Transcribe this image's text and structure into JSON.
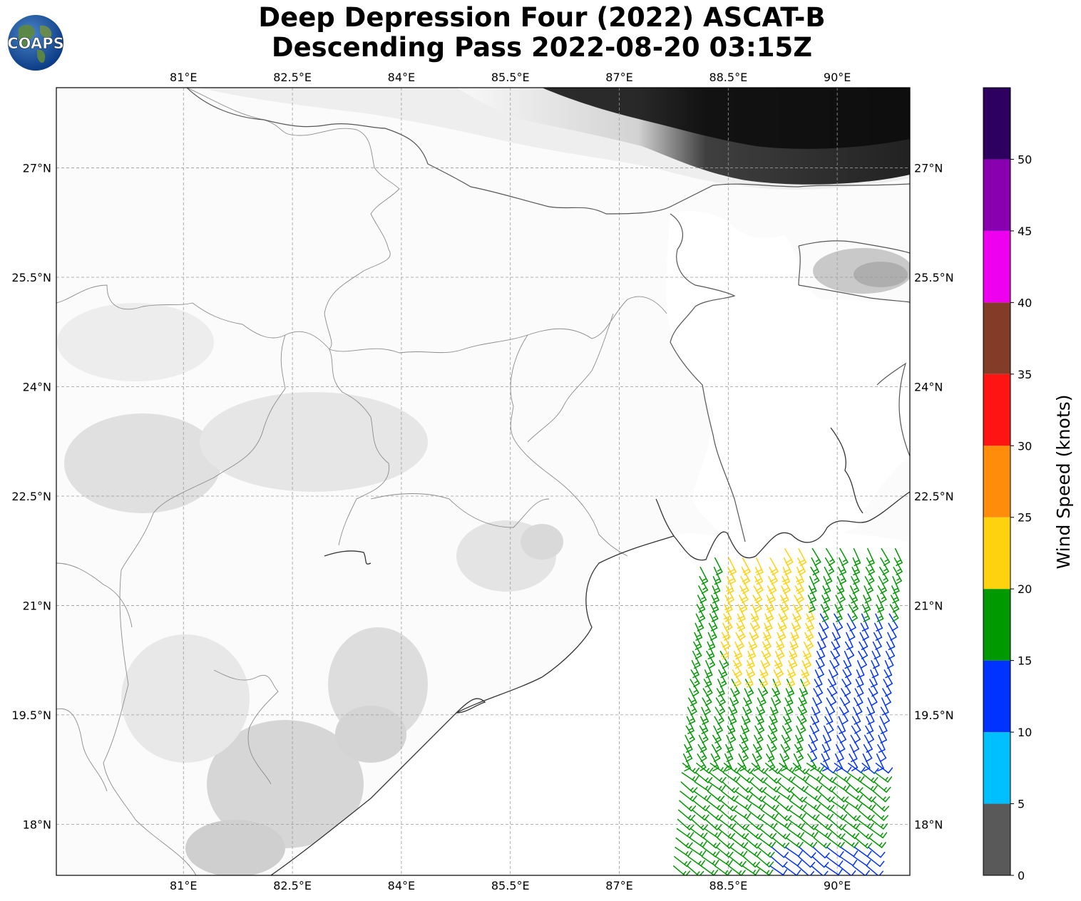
{
  "title": {
    "line1": "Deep Depression Four (2022) ASCAT-B",
    "line2": "Descending Pass 2022-08-20 03:15Z"
  },
  "logo": {
    "text": "COAPS"
  },
  "map": {
    "lon_range": [
      79.25,
      91.0
    ],
    "lat_range": [
      17.3,
      28.1
    ],
    "lon_ticks": [
      "81°E",
      "82.5°E",
      "84°E",
      "85.5°E",
      "87°E",
      "88.5°E",
      "90°E"
    ],
    "lat_ticks": [
      "27°N",
      "25.5°N",
      "24°N",
      "22.5°N",
      "21°N",
      "19.5°N",
      "18°N"
    ],
    "gridlines": true,
    "basemap": "grayscale terrain elevation",
    "barb_region": {
      "lon": [
        87.6,
        91.0
      ],
      "lat": [
        17.3,
        21.9
      ]
    }
  },
  "colorbar": {
    "label": "Wind Speed (knots)",
    "ticks": [
      "0",
      "5",
      "10",
      "15",
      "20",
      "25",
      "30",
      "35",
      "40",
      "45",
      "50"
    ],
    "bins": [
      {
        "from": 0,
        "to": 5,
        "color": "#595959"
      },
      {
        "from": 5,
        "to": 10,
        "color": "#00bfff"
      },
      {
        "from": 10,
        "to": 15,
        "color": "#0033ff"
      },
      {
        "from": 15,
        "to": 20,
        "color": "#009900"
      },
      {
        "from": 20,
        "to": 25,
        "color": "#ffd20f"
      },
      {
        "from": 25,
        "to": 30,
        "color": "#ff8c0a"
      },
      {
        "from": 30,
        "to": 35,
        "color": "#ff1414"
      },
      {
        "from": 35,
        "to": 40,
        "color": "#823c28"
      },
      {
        "from": 40,
        "to": 45,
        "color": "#ee00ee"
      },
      {
        "from": 45,
        "to": 50,
        "color": "#8800b0"
      },
      {
        "from": 50,
        "to": 55,
        "color": "#2d0060"
      }
    ]
  }
}
